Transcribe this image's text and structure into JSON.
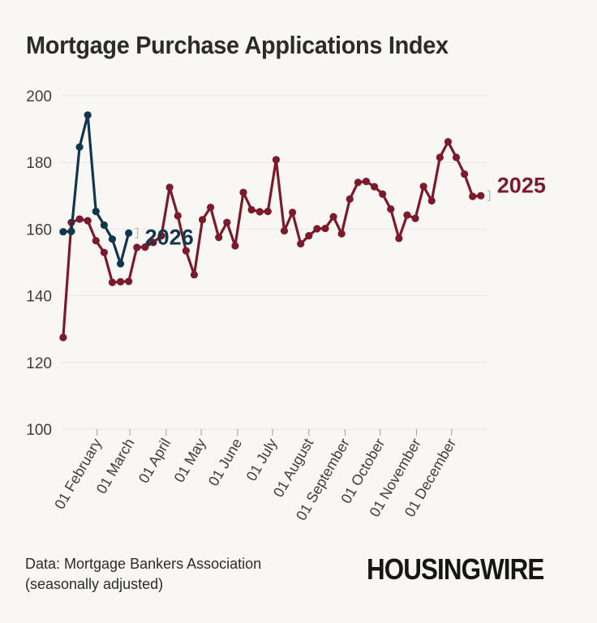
{
  "title": "Mortgage Purchase Applications Index",
  "source": {
    "line1": "Data: Mortgage Bankers Association",
    "line2": "(seasonally adjusted)"
  },
  "brand": {
    "logo_text": "HOUSINGWIRE"
  },
  "colors": {
    "series_2025": "#7b1a2b",
    "series_2026": "#12364b",
    "axis_text": "#3d3d3d",
    "grid": "#e8e6e2",
    "background": "#f8f7f4"
  },
  "chart_data": {
    "type": "line",
    "title": "Mortgage Purchase Applications Index",
    "xlabel": "",
    "ylabel": "",
    "ylim": [
      100,
      200
    ],
    "yticks": [
      100,
      120,
      140,
      160,
      180,
      200
    ],
    "xlim": [
      "2025-01-01",
      "2025-12-31"
    ],
    "xticks": [
      {
        "date": "2025-02-01",
        "label": "01 February"
      },
      {
        "date": "2025-03-01",
        "label": "01 March"
      },
      {
        "date": "2025-04-01",
        "label": "01 April"
      },
      {
        "date": "2025-05-01",
        "label": "01 May"
      },
      {
        "date": "2025-06-01",
        "label": "01 June"
      },
      {
        "date": "2025-07-01",
        "label": "01 July"
      },
      {
        "date": "2025-08-01",
        "label": "01 August"
      },
      {
        "date": "2025-09-01",
        "label": "01 September"
      },
      {
        "date": "2025-10-01",
        "label": "01 October"
      },
      {
        "date": "2025-11-01",
        "label": "01 November"
      },
      {
        "date": "2025-12-01",
        "label": "01 December"
      }
    ],
    "grid": "horizontal",
    "series": [
      {
        "name": "2025",
        "color": "#7b1a2b",
        "x": [
          "2025-01-03",
          "2025-01-10",
          "2025-01-17",
          "2025-01-24",
          "2025-01-31",
          "2025-02-07",
          "2025-02-14",
          "2025-02-21",
          "2025-02-28",
          "2025-03-07",
          "2025-03-14",
          "2025-03-21",
          "2025-03-28",
          "2025-04-04",
          "2025-04-11",
          "2025-04-18",
          "2025-04-25",
          "2025-05-02",
          "2025-05-09",
          "2025-05-16",
          "2025-05-23",
          "2025-05-30",
          "2025-06-06",
          "2025-06-13",
          "2025-06-20",
          "2025-06-27",
          "2025-07-04",
          "2025-07-11",
          "2025-07-18",
          "2025-07-25",
          "2025-08-01",
          "2025-08-08",
          "2025-08-15",
          "2025-08-22",
          "2025-08-29",
          "2025-09-05",
          "2025-09-12",
          "2025-09-19",
          "2025-09-26",
          "2025-10-03",
          "2025-10-10",
          "2025-10-17",
          "2025-10-24",
          "2025-10-31",
          "2025-11-07",
          "2025-11-14",
          "2025-11-21",
          "2025-11-28",
          "2025-12-05",
          "2025-12-12",
          "2025-12-19",
          "2025-12-26"
        ],
        "values": [
          127.5,
          162,
          163,
          162.5,
          156.5,
          153,
          144,
          144.2,
          144.3,
          154.5,
          154.6,
          156,
          158,
          172.5,
          164,
          153.5,
          146.3,
          162.8,
          166.5,
          157.5,
          162,
          155,
          171,
          165.8,
          165.2,
          165.3,
          180.8,
          159.5,
          165,
          155.6,
          158,
          160.1,
          160.2,
          163.7,
          158.6,
          169,
          174,
          174.3,
          172.7,
          170.5,
          166,
          157.2,
          164.2,
          163.2,
          172.8,
          168.5,
          181.5,
          186.2,
          181.5,
          176.5,
          169.8,
          170
        ]
      },
      {
        "name": "2026",
        "color": "#12364b",
        "x": [
          "2025-01-03",
          "2025-01-10",
          "2025-01-17",
          "2025-01-24",
          "2025-01-31",
          "2025-02-07",
          "2025-02-14",
          "2025-02-21",
          "2025-02-28"
        ],
        "values": [
          159.2,
          159.3,
          184.6,
          194.2,
          165.3,
          161.2,
          157,
          149.6,
          158.8
        ]
      }
    ]
  }
}
